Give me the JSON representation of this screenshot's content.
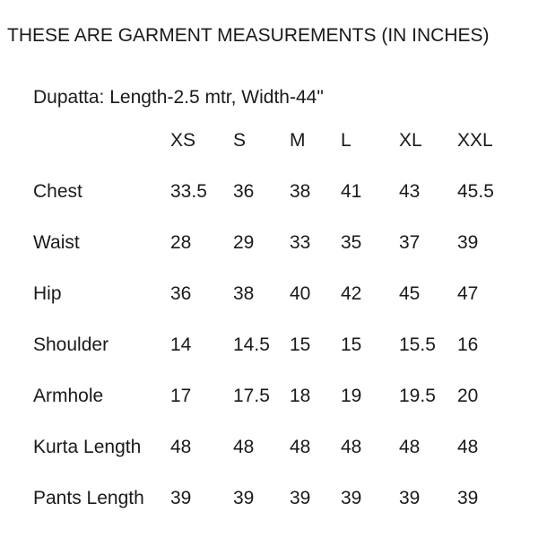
{
  "page": {
    "title": "THESE ARE GARMENT MEASUREMENTS (IN INCHES)",
    "subtitle": "Dupatta: Length-2.5 mtr, Width-44\""
  },
  "size_chart": {
    "columns": [
      "XS",
      "S",
      "M",
      "L",
      "XL",
      "XXL"
    ],
    "rows": [
      {
        "label": "Chest",
        "values": [
          "33.5",
          "36",
          "38",
          "41",
          "43",
          "45.5"
        ]
      },
      {
        "label": "Waist",
        "values": [
          "28",
          "29",
          "33",
          "35",
          "37",
          "39"
        ]
      },
      {
        "label": "Hip",
        "values": [
          "36",
          "38",
          "40",
          "42",
          "45",
          "47"
        ]
      },
      {
        "label": "Shoulder",
        "values": [
          "14",
          "14.5",
          "15",
          "15",
          "15.5",
          "16"
        ]
      },
      {
        "label": "Armhole",
        "values": [
          "17",
          "17.5",
          "18",
          "19",
          "19.5",
          "20"
        ]
      },
      {
        "label": "Kurta Length",
        "values": [
          "48",
          "48",
          "48",
          "48",
          "48",
          "48"
        ]
      },
      {
        "label": "Pants Length",
        "values": [
          "39",
          "39",
          "39",
          "39",
          "39",
          "39"
        ]
      }
    ]
  },
  "colors": {
    "text": "#1a1a1a",
    "background": "#ffffff"
  }
}
